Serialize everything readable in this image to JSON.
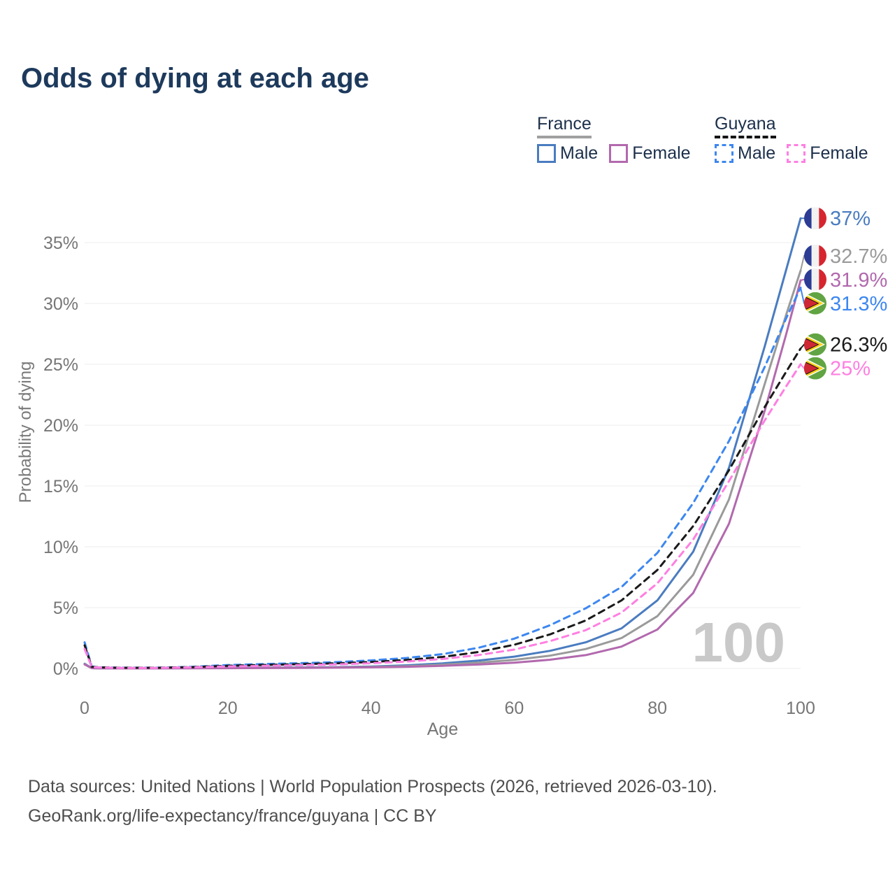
{
  "title": "Odds of dying at each age",
  "legend": {
    "groups": [
      {
        "label": "France",
        "line_style": "solid",
        "line_color": "#a0a0a0",
        "items": [
          {
            "label": "Male",
            "color": "#4a7cc0",
            "style": "solid"
          },
          {
            "label": "Female",
            "color": "#b269ae",
            "style": "solid"
          }
        ]
      },
      {
        "label": "Guyana",
        "line_style": "dashed",
        "line_color": "#141414",
        "items": [
          {
            "label": "Male",
            "color": "#3d87f0",
            "style": "dashed"
          },
          {
            "label": "Female",
            "color": "#ff7fe1",
            "style": "dashed"
          }
        ]
      }
    ]
  },
  "chart_data": {
    "type": "line",
    "title": "Odds of dying at each age",
    "xlabel": "Age",
    "ylabel": "Probability of dying",
    "xlim": [
      0,
      100
    ],
    "ylim": [
      0,
      38
    ],
    "x_ticks": [
      0,
      20,
      40,
      60,
      80,
      100
    ],
    "y_ticks": [
      "0%",
      "5%",
      "10%",
      "15%",
      "20%",
      "25%",
      "30%",
      "35%"
    ],
    "y_tick_values": [
      0,
      5,
      10,
      15,
      20,
      25,
      30,
      35
    ],
    "grid": true,
    "legend_position": "top-right",
    "watermark": "100",
    "x": [
      0,
      1,
      2,
      5,
      10,
      15,
      20,
      25,
      30,
      35,
      40,
      45,
      50,
      55,
      60,
      65,
      70,
      75,
      80,
      85,
      90,
      95,
      98,
      100
    ],
    "series": [
      {
        "name": "France Male",
        "color": "#4a7cc0",
        "dash": false,
        "flag": "france",
        "end_label": "37%",
        "values": [
          0.39,
          0.03,
          0.02,
          0.01,
          0.01,
          0.03,
          0.06,
          0.07,
          0.08,
          0.11,
          0.16,
          0.26,
          0.42,
          0.65,
          0.97,
          1.45,
          2.15,
          3.3,
          5.6,
          9.6,
          16.5,
          26.5,
          32.8,
          37
        ]
      },
      {
        "name": "France Both sexes",
        "color": "#9a9a9a",
        "dash": false,
        "flag": "france",
        "end_label": "32.7%",
        "values": [
          0.36,
          0.026,
          0.017,
          0.009,
          0.009,
          0.024,
          0.043,
          0.05,
          0.06,
          0.085,
          0.12,
          0.19,
          0.31,
          0.47,
          0.7,
          1.05,
          1.6,
          2.5,
          4.3,
          7.7,
          13.9,
          23.4,
          29.1,
          32.7
        ]
      },
      {
        "name": "France Female",
        "color": "#b269ae",
        "dash": false,
        "flag": "france",
        "end_label": "31.9%",
        "values": [
          0.33,
          0.023,
          0.015,
          0.008,
          0.008,
          0.018,
          0.025,
          0.033,
          0.044,
          0.062,
          0.09,
          0.14,
          0.22,
          0.32,
          0.47,
          0.72,
          1.1,
          1.8,
          3.2,
          6.2,
          11.9,
          21.2,
          27.5,
          31.9
        ]
      },
      {
        "name": "Guyana Male",
        "color": "#3d87f0",
        "dash": true,
        "flag": "guyana",
        "end_label": "31.3%",
        "values": [
          2.15,
          0.16,
          0.1,
          0.065,
          0.065,
          0.13,
          0.28,
          0.36,
          0.43,
          0.52,
          0.66,
          0.86,
          1.18,
          1.7,
          2.45,
          3.55,
          4.95,
          6.7,
          9.5,
          13.6,
          18.7,
          24.8,
          28.8,
          31.3
        ]
      },
      {
        "name": "Guyana Both sexes",
        "color": "#1a1a1a",
        "dash": true,
        "flag": "guyana",
        "end_label": "26.3%",
        "values": [
          1.9,
          0.14,
          0.09,
          0.055,
          0.055,
          0.11,
          0.22,
          0.29,
          0.35,
          0.42,
          0.53,
          0.7,
          0.95,
          1.35,
          1.95,
          2.8,
          3.95,
          5.6,
          8.1,
          11.7,
          16.3,
          21.5,
          24.4,
          26.3
        ]
      },
      {
        "name": "Guyana Female",
        "color": "#ff7fe1",
        "dash": true,
        "flag": "guyana",
        "end_label": "25%",
        "values": [
          1.6,
          0.12,
          0.08,
          0.045,
          0.045,
          0.09,
          0.16,
          0.21,
          0.27,
          0.33,
          0.43,
          0.57,
          0.78,
          1.1,
          1.55,
          2.25,
          3.15,
          4.6,
          7.0,
          10.6,
          15.4,
          20.4,
          23.2,
          25
        ]
      }
    ]
  },
  "footer": {
    "line1": "Data sources: United Nations | World Population Prospects (2026, retrieved 2026-03-10).",
    "line2": "GeoRank.org/life-expectancy/france/guyana | CC BY"
  }
}
